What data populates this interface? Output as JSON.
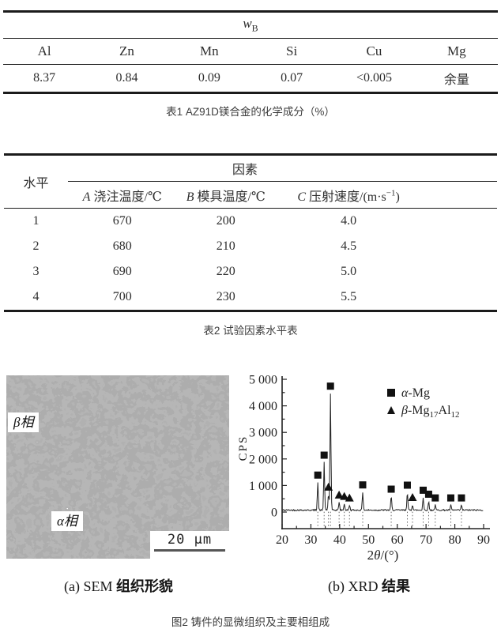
{
  "table1": {
    "caption": "表1 AZ91D镁合金的化学成分（%）",
    "group_header": {
      "symbol": "w",
      "subscript": "B"
    },
    "columns": [
      "Al",
      "Zn",
      "Mn",
      "Si",
      "Cu",
      "Mg"
    ],
    "values": [
      "8.37",
      "0.84",
      "0.09",
      "0.07",
      "<0.005",
      "余量"
    ]
  },
  "table2": {
    "caption": "表2 试验因素水平表",
    "level_header": "水平",
    "factor_header": "因素",
    "factor_columns": [
      {
        "var": "A",
        "label": "浇注温度/℃",
        "sup": "",
        "suffix": ""
      },
      {
        "var": "B",
        "label": "模具温度/℃",
        "sup": "",
        "suffix": ""
      },
      {
        "var": "C",
        "label": "压射速度/(m·s",
        "sup": "−1",
        "suffix": ")"
      }
    ],
    "rows": [
      {
        "level": "1",
        "values": [
          "670",
          "200",
          "4.0"
        ]
      },
      {
        "level": "2",
        "values": [
          "680",
          "210",
          "4.5"
        ]
      },
      {
        "level": "3",
        "values": [
          "690",
          "220",
          "5.0"
        ]
      },
      {
        "level": "4",
        "values": [
          "700",
          "230",
          "5.5"
        ]
      }
    ]
  },
  "figure": {
    "sem": {
      "beta_label": "β相",
      "alpha_label": "α相",
      "scale_bar_label": "20 μm"
    },
    "subcaption_a": {
      "prefix": "(a) SEM ",
      "label": "组织形貌"
    },
    "subcaption_b": {
      "prefix": "(b) XRD ",
      "label": "结果"
    },
    "caption": "图2 铸件的显微组织及主要相组成"
  },
  "chart_data": {
    "type": "line",
    "title": "",
    "xlabel": "2θ/(°)",
    "ylabel": "CPS",
    "xlim": [
      20,
      90
    ],
    "ylim": [
      0,
      5000
    ],
    "x_ticks": [
      20,
      30,
      40,
      50,
      60,
      70,
      80,
      90
    ],
    "x_minor_step": 5,
    "y_ticks": [
      0,
      1000,
      2000,
      3000,
      4000,
      5000
    ],
    "y_tick_labels": [
      "0",
      "1 000",
      "2 000",
      "3 000",
      "4 000",
      "5 000"
    ],
    "y_minor_step": 500,
    "grid": false,
    "legend_position": "top-right-inside",
    "baseline_cps": 70,
    "series": [
      {
        "name": "α-Mg",
        "marker": "square",
        "peaks_x": [
          32.4,
          34.6,
          36.8,
          48.0,
          57.9,
          63.5,
          69.0,
          70.9,
          73.2,
          78.6,
          82.3
        ],
        "peaks_cps": [
          1050,
          1800,
          4400,
          680,
          520,
          670,
          480,
          330,
          190,
          190,
          190
        ]
      },
      {
        "name": "β-Mg17Al12",
        "marker": "triangle",
        "peaks_x": [
          36.1,
          39.8,
          41.6,
          43.4,
          65.3
        ],
        "peaks_cps": [
          600,
          300,
          250,
          190,
          210
        ]
      }
    ]
  }
}
